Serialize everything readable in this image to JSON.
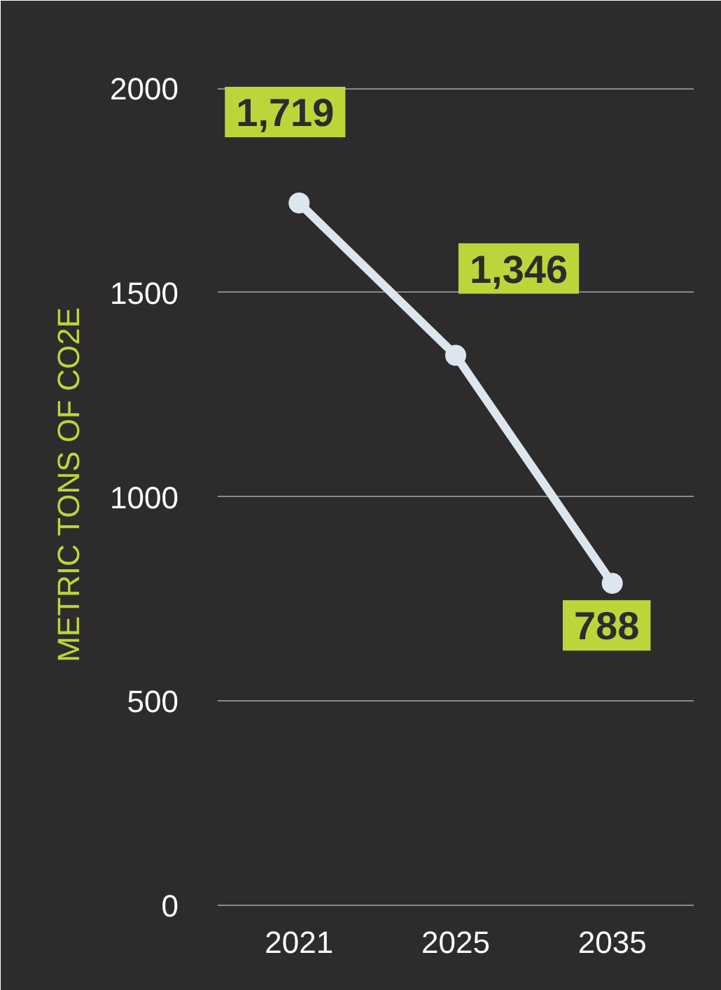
{
  "chart_data": {
    "type": "line",
    "ylabel": "METRIC TONS OF CO2E",
    "categories": [
      "2021",
      "2025",
      "2035"
    ],
    "series": [
      {
        "color": "#dce6ef",
        "values": [
          1719,
          1346,
          788
        ],
        "value_labels": [
          "1,719",
          "1,346",
          "788"
        ]
      }
    ],
    "ylim": [
      0,
      2060
    ],
    "yticks": [
      0,
      500,
      1000,
      1500,
      2000
    ],
    "grid": "y",
    "marker": "circle",
    "line_style": "solid"
  }
}
